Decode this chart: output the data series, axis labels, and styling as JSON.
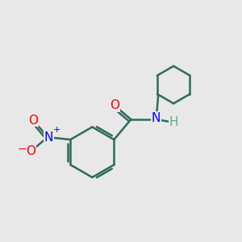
{
  "bg_color": "#e8e8e8",
  "bond_color": "#2d6b5e",
  "bond_width": 1.8,
  "atom_colors": {
    "O": "#ff0000",
    "N_amide": "#0000ff",
    "N_nitro": "#0000ff",
    "H": "#5aaa88",
    "C": "#2d6b5e"
  },
  "font_size_atom": 11,
  "font_size_charge": 8
}
